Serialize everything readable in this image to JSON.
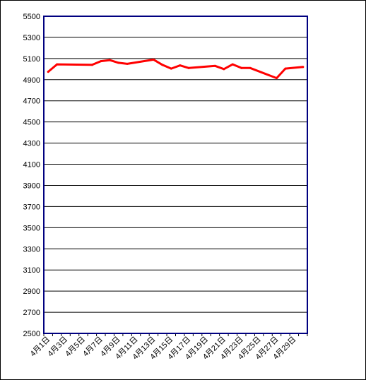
{
  "chart_data": {
    "type": "line",
    "title": "",
    "xlabel": "",
    "ylabel": "",
    "ylim": [
      2500,
      5500
    ],
    "yticks": [
      2500,
      2700,
      2900,
      3100,
      3300,
      3500,
      3700,
      3900,
      4100,
      4300,
      4500,
      4700,
      4900,
      5100,
      5300,
      5500
    ],
    "grid": true,
    "categories": [
      "4月1日",
      "4月2日",
      "4月3日",
      "4月4日",
      "4月5日",
      "4月6日",
      "4月7日",
      "4月8日",
      "4月9日",
      "4月10日",
      "4月11日",
      "4月12日",
      "4月13日",
      "4月14日",
      "4月15日",
      "4月16日",
      "4月17日",
      "4月18日",
      "4月19日",
      "4月20日",
      "4月21日",
      "4月22日",
      "4月23日",
      "4月24日",
      "4月25日",
      "4月26日",
      "4月27日",
      "4月28日",
      "4月29日",
      "4月30日"
    ],
    "x_tick_labels": [
      "4月1日",
      "4月3日",
      "4月5日",
      "4月7日",
      "4月9日",
      "4月11日",
      "4月13日",
      "4月15日",
      "4月17日",
      "4月19日",
      "4月21日",
      "4月23日",
      "4月25日",
      "4月27日",
      "4月29日"
    ],
    "series": [
      {
        "color": "#ff0000",
        "points": [
          {
            "x": "4月1日",
            "y": 4975
          },
          {
            "x": "4月2日",
            "y": 5045
          },
          {
            "x": "4月6日",
            "y": 5040
          },
          {
            "x": "4月7日",
            "y": 5075
          },
          {
            "x": "4月8日",
            "y": 5085
          },
          {
            "x": "4月9日",
            "y": 5060
          },
          {
            "x": "4月10日",
            "y": 5050
          },
          {
            "x": "4月13日",
            "y": 5090
          },
          {
            "x": "4月14日",
            "y": 5040
          },
          {
            "x": "4月15日",
            "y": 5005
          },
          {
            "x": "4月16日",
            "y": 5035
          },
          {
            "x": "4月17日",
            "y": 5010
          },
          {
            "x": "4月20日",
            "y": 5030
          },
          {
            "x": "4月21日",
            "y": 5000
          },
          {
            "x": "4月22日",
            "y": 5045
          },
          {
            "x": "4月23日",
            "y": 5010
          },
          {
            "x": "4月24日",
            "y": 5010
          },
          {
            "x": "4月27日",
            "y": 4915
          },
          {
            "x": "4月28日",
            "y": 5005
          },
          {
            "x": "4月30日",
            "y": 5020
          }
        ]
      }
    ],
    "colors": {
      "plot_border": "#000080",
      "grid": "#000000",
      "line": "#ff0000"
    }
  }
}
